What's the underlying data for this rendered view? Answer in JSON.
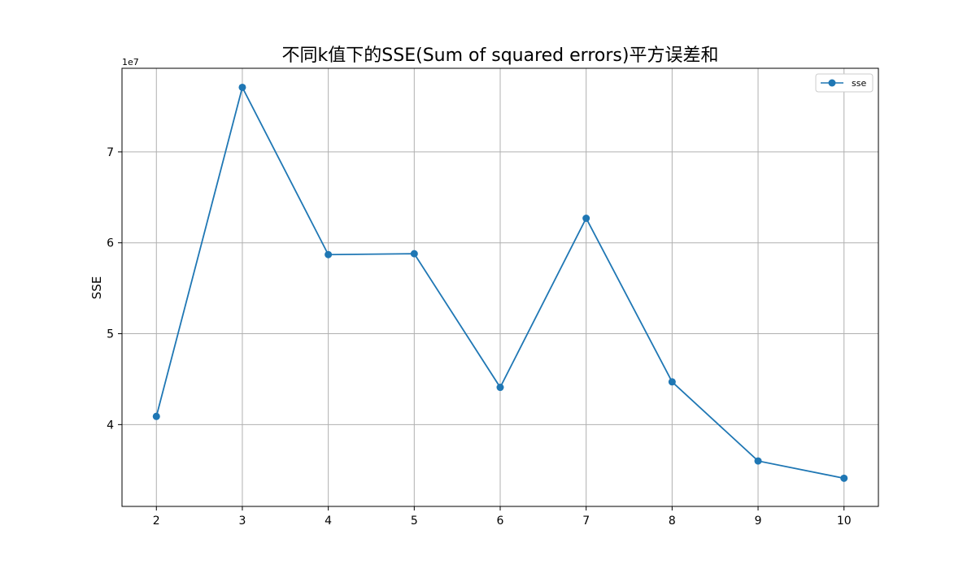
{
  "chart_data": {
    "type": "line",
    "title": "不同k值下的SSE(Sum of squared errors)平方误差和",
    "xlabel": "",
    "ylabel": "SSE",
    "y_offset_label": "1e7",
    "x": [
      2,
      3,
      4,
      5,
      6,
      7,
      8,
      9,
      10
    ],
    "xticks": [
      "2",
      "3",
      "4",
      "5",
      "6",
      "7",
      "8",
      "9",
      "10"
    ],
    "yticks": [
      "4",
      "5",
      "6",
      "7"
    ],
    "ytick_values": [
      40000000,
      50000000,
      60000000,
      70000000
    ],
    "xlim": [
      1.6,
      10.4
    ],
    "ylim": [
      31000000,
      79200000
    ],
    "grid": true,
    "legend_position": "top-right",
    "series": [
      {
        "name": "sse",
        "color": "#1f77b4",
        "marker": "circle",
        "values": [
          40900000,
          77100000,
          58700000,
          58800000,
          44100000,
          62700000,
          44700000,
          36000000,
          34100000
        ]
      }
    ]
  }
}
